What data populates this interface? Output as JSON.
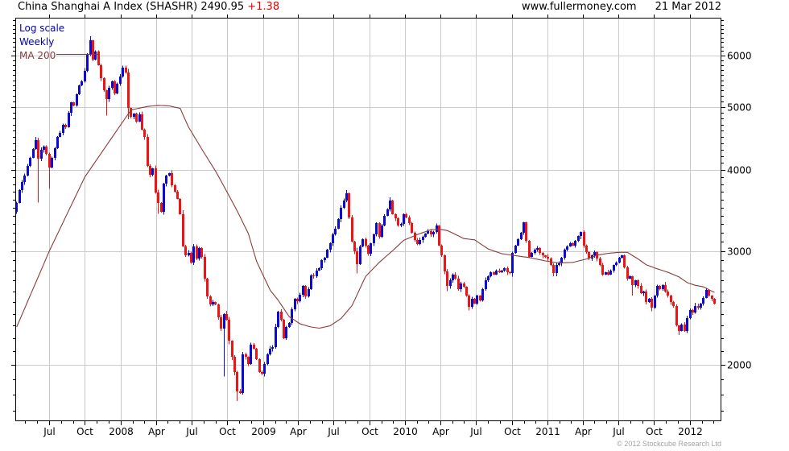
{
  "header": {
    "title": "China Shanghai A Index (SHASHR) 2490.95",
    "change": "+1.38",
    "site": "www.fullermoney.com",
    "date": "21 Mar 2012"
  },
  "legend": {
    "scale_label": "Log scale",
    "interval_label": "Weekly",
    "ma_label": "MA 200"
  },
  "footer": {
    "copyright": "© 2012 Stockcube Research Ltd"
  },
  "chart_data": {
    "type": "candlestick",
    "instrument": "China Shanghai A Index (SHASHR)",
    "last_price": 2490.95,
    "change": 1.38,
    "scale": "log",
    "interval": "weekly",
    "start_date": "2007-04-09",
    "end_date": "2012-03-19",
    "weeks_span": 259,
    "ylim": [
      1639,
      6865
    ],
    "y_ticks": [
      2000,
      3000,
      4000,
      5000,
      6000
    ],
    "y_minor_step": 100,
    "y_minor_range": [
      1700,
      6800
    ],
    "x_ticks": [
      {
        "label": "Jul",
        "date": "2007-07-01"
      },
      {
        "label": "Oct",
        "date": "2007-10-01"
      },
      {
        "label": "2008",
        "date": "2008-01-01"
      },
      {
        "label": "Apr",
        "date": "2008-04-01"
      },
      {
        "label": "Jul",
        "date": "2008-07-01"
      },
      {
        "label": "Oct",
        "date": "2008-10-01"
      },
      {
        "label": "2009",
        "date": "2009-01-01"
      },
      {
        "label": "Apr",
        "date": "2009-04-01"
      },
      {
        "label": "Jul",
        "date": "2009-07-01"
      },
      {
        "label": "Oct",
        "date": "2009-10-01"
      },
      {
        "label": "2010",
        "date": "2010-01-01"
      },
      {
        "label": "Apr",
        "date": "2010-04-01"
      },
      {
        "label": "Jul",
        "date": "2010-07-01"
      },
      {
        "label": "Oct",
        "date": "2010-10-01"
      },
      {
        "label": "2011",
        "date": "2011-01-01"
      },
      {
        "label": "Apr",
        "date": "2011-04-01"
      },
      {
        "label": "Jul",
        "date": "2011-07-01"
      },
      {
        "label": "Oct",
        "date": "2011-10-01"
      },
      {
        "label": "2012",
        "date": "2012-01-01"
      }
    ],
    "x_minor": "monthly",
    "open_first": 3450,
    "closes": [
      3560,
      3720,
      3830,
      3920,
      4060,
      4180,
      4310,
      4450,
      4160,
      4300,
      4350,
      4230,
      4030,
      4180,
      4320,
      4500,
      4560,
      4700,
      4660,
      4900,
      5080,
      5020,
      5230,
      5400,
      5480,
      5680,
      6020,
      6330,
      5920,
      6090,
      5800,
      5540,
      5300,
      5150,
      5350,
      5480,
      5250,
      5430,
      5570,
      5750,
      5650,
      4980,
      4830,
      4880,
      4750,
      4870,
      4620,
      4500,
      4060,
      3930,
      4020,
      3690,
      3560,
      3450,
      3810,
      3920,
      3950,
      3790,
      3700,
      3610,
      3420,
      3050,
      2950,
      2980,
      2880,
      3050,
      2920,
      3030,
      2940,
      2720,
      2550,
      2480,
      2500,
      2480,
      2370,
      2280,
      2400,
      2350,
      2180,
      2060,
      1950,
      1820,
      1810,
      2080,
      2060,
      2010,
      2150,
      2120,
      2040,
      1950,
      1940,
      2010,
      2080,
      2120,
      2130,
      2290,
      2420,
      2350,
      2200,
      2290,
      2320,
      2440,
      2530,
      2510,
      2570,
      2650,
      2550,
      2620,
      2750,
      2740,
      2800,
      2820,
      2900,
      2930,
      3010,
      3080,
      3180,
      3250,
      3360,
      3500,
      3590,
      3680,
      3380,
      3100,
      3000,
      2860,
      3050,
      3130,
      3060,
      2970,
      3080,
      3180,
      3310,
      3150,
      3280,
      3400,
      3480,
      3590,
      3420,
      3370,
      3280,
      3300,
      3420,
      3380,
      3310,
      3200,
      3120,
      3070,
      3120,
      3150,
      3190,
      3220,
      3180,
      3210,
      3280,
      3060,
      2950,
      2790,
      2650,
      2700,
      2760,
      2720,
      2620,
      2670,
      2640,
      2560,
      2460,
      2530,
      2490,
      2560,
      2520,
      2620,
      2700,
      2740,
      2780,
      2760,
      2800,
      2780,
      2800,
      2820,
      2780,
      2770,
      2980,
      3060,
      3130,
      3200,
      3320,
      3110,
      2940,
      2980,
      3010,
      3030,
      2980,
      2950,
      2940,
      2920,
      2850,
      2770,
      2850,
      2870,
      2930,
      3010,
      3050,
      3080,
      3060,
      3110,
      3160,
      3210,
      3060,
      2990,
      2920,
      2950,
      2990,
      2920,
      2850,
      2760,
      2780,
      2760,
      2800,
      2850,
      2880,
      2930,
      2950,
      2830,
      2720,
      2740,
      2660,
      2700,
      2650,
      2580,
      2600,
      2500,
      2530,
      2450,
      2560,
      2650,
      2620,
      2660,
      2600,
      2560,
      2500,
      2470,
      2300,
      2260,
      2310,
      2260,
      2360,
      2430,
      2410,
      2470,
      2450,
      2490,
      2540,
      2610,
      2560,
      2530,
      2491
    ],
    "wick_overrides": {
      "8": {
        "low": 3560
      },
      "12": {
        "low": 3740
      },
      "27": {
        "high": 6430
      },
      "33": {
        "low": 4850
      },
      "41": {
        "low": 4790
      },
      "52": {
        "low": 3420
      },
      "76": {
        "low": 1920
      },
      "81": {
        "low": 1760
      },
      "121": {
        "high": 3723
      },
      "125": {
        "low": 2770
      },
      "137": {
        "high": 3630
      },
      "158": {
        "low": 2600
      },
      "166": {
        "low": 2430
      },
      "207": {
        "high": 3215
      },
      "226": {
        "low": 2560
      },
      "233": {
        "low": 2420
      },
      "243": {
        "low": 2225
      }
    },
    "ma200_anchors": [
      [
        0,
        2290
      ],
      [
        12,
        3000
      ],
      [
        25,
        3900
      ],
      [
        39,
        4750
      ],
      [
        42,
        4950
      ],
      [
        48,
        5010
      ],
      [
        52,
        5030
      ],
      [
        56,
        5020
      ],
      [
        60,
        4975
      ],
      [
        63,
        4660
      ],
      [
        68,
        4300
      ],
      [
        73,
        3980
      ],
      [
        77,
        3710
      ],
      [
        81,
        3450
      ],
      [
        85,
        3190
      ],
      [
        88,
        2890
      ],
      [
        93,
        2610
      ],
      [
        96,
        2515
      ],
      [
        100,
        2375
      ],
      [
        104,
        2315
      ],
      [
        108,
        2290
      ],
      [
        111,
        2280
      ],
      [
        115,
        2300
      ],
      [
        119,
        2360
      ],
      [
        123,
        2470
      ],
      [
        128,
        2740
      ],
      [
        133,
        2880
      ],
      [
        138,
        3005
      ],
      [
        142,
        3115
      ],
      [
        147,
        3180
      ],
      [
        152,
        3235
      ],
      [
        155,
        3240
      ],
      [
        158,
        3225
      ],
      [
        161,
        3180
      ],
      [
        164,
        3135
      ],
      [
        168,
        3120
      ],
      [
        173,
        3020
      ],
      [
        178,
        2970
      ],
      [
        183,
        2950
      ],
      [
        188,
        2930
      ],
      [
        194,
        2895
      ],
      [
        199,
        2875
      ],
      [
        204,
        2880
      ],
      [
        209,
        2915
      ],
      [
        213,
        2955
      ],
      [
        217,
        2975
      ],
      [
        221,
        2985
      ],
      [
        224,
        2985
      ],
      [
        228,
        2915
      ],
      [
        231,
        2855
      ],
      [
        235,
        2815
      ],
      [
        239,
        2780
      ],
      [
        243,
        2735
      ],
      [
        246,
        2680
      ],
      [
        249,
        2655
      ],
      [
        252,
        2640
      ],
      [
        255,
        2600
      ],
      [
        256,
        2590
      ]
    ],
    "colors": {
      "up": "#0a0ad2",
      "down": "#ee1414",
      "ma": "#8e3a3a",
      "grid": "#cbcbcb",
      "axis": "#000000",
      "legend_blue": "#0000bb",
      "change_red": "#e80000",
      "copyright_gray": "#a3a3a3"
    }
  }
}
